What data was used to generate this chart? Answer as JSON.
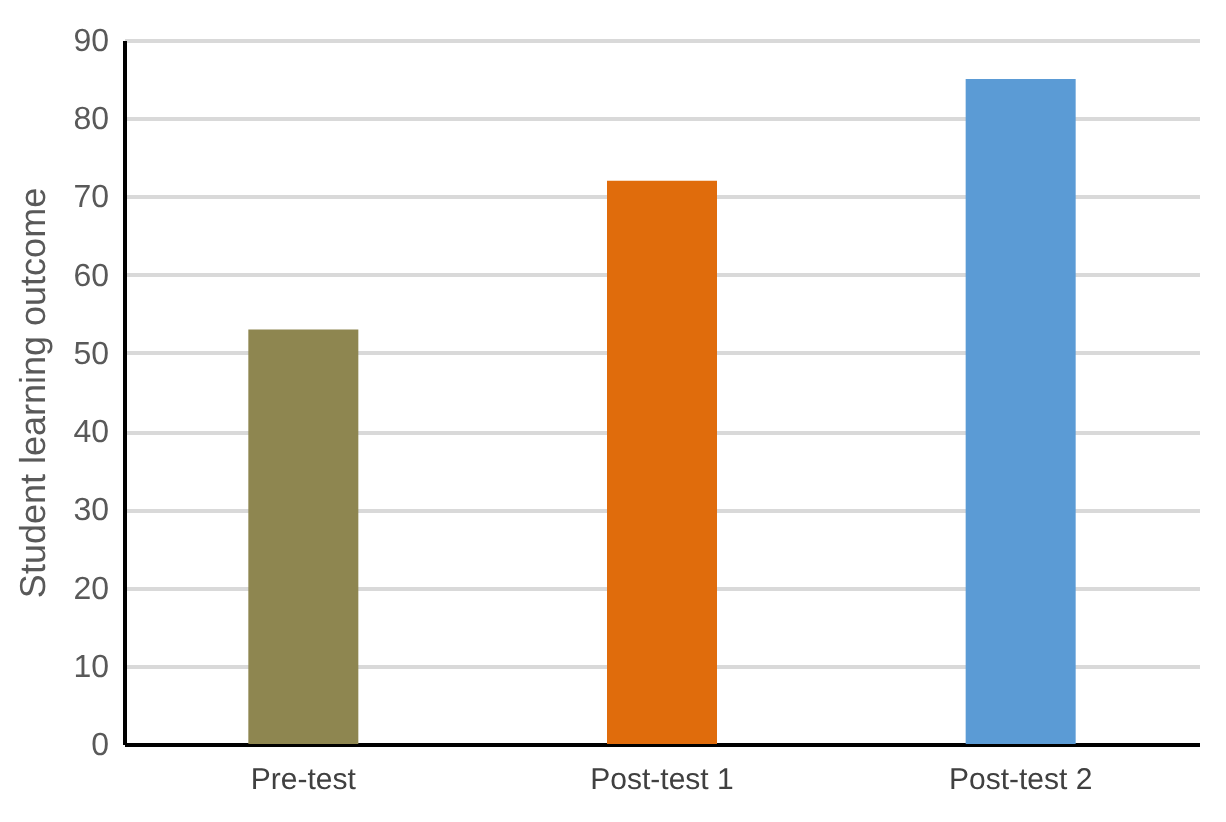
{
  "chart_data": {
    "type": "bar",
    "ylabel": "Student learning outcome",
    "categories": [
      "Pre-test",
      "Post-test 1",
      "Post-test 2"
    ],
    "values": [
      53,
      72,
      85
    ],
    "colors": [
      "#8e8650",
      "#e06c0c",
      "#5b9bd5"
    ],
    "ylim": [
      0,
      90
    ],
    "yticks": [
      0,
      10,
      20,
      30,
      40,
      50,
      60,
      70,
      80,
      90
    ],
    "grid": "y"
  }
}
